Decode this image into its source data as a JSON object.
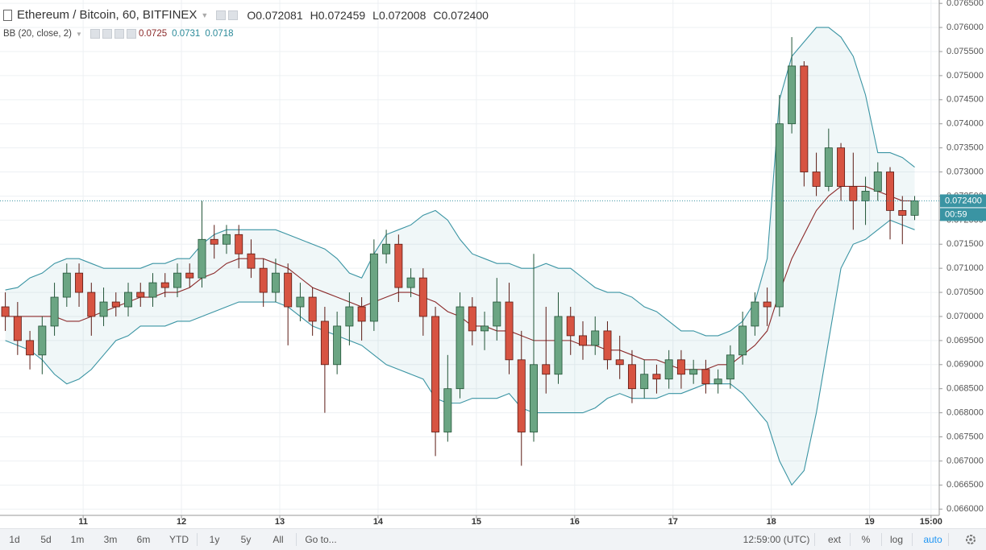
{
  "ui": {
    "symbol": "Ethereum / Bitcoin, 60, BITFINEX",
    "ohlc": [
      {
        "key": "O",
        "value": "0.072081"
      },
      {
        "key": "H",
        "value": "0.072459"
      },
      {
        "key": "L",
        "value": "0.072008"
      },
      {
        "key": "C",
        "value": "0.072400"
      }
    ],
    "indicator": "BB (20, close, 2)",
    "indicator_values": [
      {
        "value": "0.0725",
        "color": "#8b2a2a"
      },
      {
        "value": "0.0731",
        "color": "#2b8a99"
      },
      {
        "value": "0.0718",
        "color": "#2b8a99"
      }
    ],
    "toolbar_left": [
      "1d",
      "5d",
      "1m",
      "3m",
      "6m",
      "YTD",
      "1y",
      "5y",
      "All",
      "Go to..."
    ],
    "clock": "12:59:00 (UTC)",
    "toolbar_right": [
      "ext",
      "%",
      "log",
      "auto"
    ]
  },
  "chart_data": {
    "type": "candlestick",
    "x": [
      5,
      8,
      11,
      14,
      17,
      20,
      23,
      26,
      29,
      32,
      35,
      38,
      41,
      44,
      47,
      50,
      53,
      56,
      59,
      62,
      65,
      68,
      71,
      74,
      77,
      80,
      83,
      86,
      89,
      92,
      95,
      98,
      101,
      104,
      107,
      110,
      113,
      116,
      119,
      122,
      125,
      128,
      131,
      134,
      137,
      140,
      143,
      146,
      149,
      152,
      155,
      158,
      161,
      164,
      167,
      170,
      173,
      176,
      179,
      182,
      185,
      188,
      191,
      194,
      197,
      200,
      203,
      206,
      209,
      212,
      215,
      218,
      221,
      224,
      227
    ],
    "open": [
      0.0702,
      0.07,
      0.0695,
      0.0692,
      0.0698,
      0.0704,
      0.0709,
      0.0705,
      0.07,
      0.0703,
      0.0702,
      0.0705,
      0.0704,
      0.0707,
      0.0706,
      0.0709,
      0.0708,
      0.0716,
      0.0715,
      0.0717,
      0.0713,
      0.071,
      0.0705,
      0.0709,
      0.0702,
      0.0704,
      0.0699,
      0.069,
      0.0698,
      0.0702,
      0.0699,
      0.0713,
      0.0715,
      0.0706,
      0.0708,
      0.07,
      0.0676,
      0.0685,
      0.0702,
      0.0697,
      0.0698,
      0.0703,
      0.0691,
      0.0676,
      0.069,
      0.0688,
      0.07,
      0.0696,
      0.0694,
      0.0697,
      0.0691,
      0.069,
      0.0685,
      0.0688,
      0.0687,
      0.0691,
      0.0688,
      0.0689,
      0.0686,
      0.0687,
      0.0692,
      0.0698,
      0.0703,
      0.0702,
      0.074,
      0.0752,
      0.073,
      0.0727,
      0.0735,
      0.0727,
      0.0724,
      0.0726,
      0.073,
      0.0722,
      0.0721
    ],
    "high": [
      0.0705,
      0.0703,
      0.0697,
      0.07,
      0.0707,
      0.0711,
      0.0711,
      0.0707,
      0.0706,
      0.0705,
      0.0707,
      0.0707,
      0.0709,
      0.0709,
      0.0711,
      0.0711,
      0.0724,
      0.0719,
      0.0719,
      0.0719,
      0.0716,
      0.0712,
      0.0712,
      0.0711,
      0.0707,
      0.0706,
      0.0702,
      0.0701,
      0.0705,
      0.0704,
      0.0716,
      0.0718,
      0.0717,
      0.071,
      0.071,
      0.0702,
      0.0692,
      0.0705,
      0.0704,
      0.0701,
      0.0708,
      0.0707,
      0.0697,
      0.0713,
      0.0702,
      0.0705,
      0.0702,
      0.0699,
      0.07,
      0.0699,
      0.0696,
      0.0693,
      0.0691,
      0.069,
      0.0693,
      0.0693,
      0.0691,
      0.0691,
      0.0689,
      0.0694,
      0.0701,
      0.0705,
      0.0706,
      0.0746,
      0.0758,
      0.0753,
      0.0734,
      0.0739,
      0.0736,
      0.0734,
      0.0729,
      0.0732,
      0.0731,
      0.0725,
      0.0725
    ],
    "low": [
      0.0697,
      0.0692,
      0.0689,
      0.0688,
      0.0696,
      0.0702,
      0.0702,
      0.0696,
      0.0698,
      0.07,
      0.07,
      0.0702,
      0.0702,
      0.0704,
      0.0704,
      0.0706,
      0.0706,
      0.0712,
      0.0713,
      0.071,
      0.0708,
      0.0702,
      0.0703,
      0.0694,
      0.0699,
      0.0696,
      0.068,
      0.0688,
      0.0694,
      0.0695,
      0.0697,
      0.0711,
      0.0703,
      0.0704,
      0.0696,
      0.0671,
      0.0674,
      0.0683,
      0.0694,
      0.0693,
      0.0695,
      0.0688,
      0.0669,
      0.0674,
      0.0684,
      0.0686,
      0.0692,
      0.0691,
      0.0692,
      0.0689,
      0.0687,
      0.0682,
      0.0683,
      0.0684,
      0.0685,
      0.0685,
      0.0686,
      0.0684,
      0.0684,
      0.0685,
      0.069,
      0.0696,
      0.0698,
      0.07,
      0.0738,
      0.0727,
      0.0725,
      0.0726,
      0.0724,
      0.0718,
      0.0719,
      0.0724,
      0.0716,
      0.0715,
      0.072
    ],
    "close": [
      0.07,
      0.0695,
      0.0692,
      0.0698,
      0.0704,
      0.0709,
      0.0705,
      0.07,
      0.0703,
      0.0702,
      0.0705,
      0.0704,
      0.0707,
      0.0706,
      0.0709,
      0.0708,
      0.0716,
      0.0715,
      0.0717,
      0.0713,
      0.071,
      0.0705,
      0.0709,
      0.0702,
      0.0704,
      0.0699,
      0.069,
      0.0698,
      0.0702,
      0.0699,
      0.0713,
      0.0715,
      0.0706,
      0.0708,
      0.07,
      0.0676,
      0.0685,
      0.0702,
      0.0697,
      0.0698,
      0.0703,
      0.0691,
      0.0676,
      0.069,
      0.0688,
      0.07,
      0.0696,
      0.0694,
      0.0697,
      0.0691,
      0.069,
      0.0685,
      0.0688,
      0.0687,
      0.0691,
      0.0688,
      0.0689,
      0.0686,
      0.0687,
      0.0692,
      0.0698,
      0.0703,
      0.0702,
      0.074,
      0.0752,
      0.073,
      0.0727,
      0.0735,
      0.0727,
      0.0724,
      0.0726,
      0.073,
      0.0722,
      0.0721,
      0.0724
    ],
    "up_color": "#6ba583",
    "up_border": "#225437",
    "down_color": "#d75442",
    "down_border": "#5b1a13",
    "bands": {
      "fill": "#2b8a99",
      "series": [
        {
          "color": "#3a94a3",
          "values": [
            0.07055,
            0.0706,
            0.0708,
            0.0709,
            0.0711,
            0.0712,
            0.0712,
            0.0711,
            0.071,
            0.071,
            0.071,
            0.071,
            0.0711,
            0.0711,
            0.0712,
            0.0712,
            0.0715,
            0.0717,
            0.0718,
            0.0718,
            0.0718,
            0.0718,
            0.0718,
            0.0717,
            0.0716,
            0.0715,
            0.0714,
            0.0712,
            0.0709,
            0.0708,
            0.0713,
            0.0717,
            0.0718,
            0.0719,
            0.0721,
            0.0722,
            0.072,
            0.0716,
            0.0713,
            0.0712,
            0.0711,
            0.0711,
            0.071,
            0.071,
            0.0711,
            0.071,
            0.071,
            0.0708,
            0.0706,
            0.0705,
            0.0705,
            0.0704,
            0.0702,
            0.0701,
            0.0699,
            0.0697,
            0.0697,
            0.0696,
            0.0696,
            0.0697,
            0.0699,
            0.0703,
            0.0712,
            0.0745,
            0.0754,
            0.0757,
            0.076,
            0.076,
            0.0758,
            0.0754,
            0.0746,
            0.0734,
            0.0734,
            0.0733,
            0.0731
          ]
        },
        {
          "color": "#8b2a2a",
          "values": [
            0.07,
            0.07,
            0.07,
            0.07,
            0.07,
            0.0699,
            0.0699,
            0.07,
            0.0701,
            0.0702,
            0.0703,
            0.0704,
            0.0704,
            0.0705,
            0.0705,
            0.0706,
            0.0708,
            0.0709,
            0.0711,
            0.0712,
            0.0712,
            0.0712,
            0.0711,
            0.071,
            0.0708,
            0.0706,
            0.0705,
            0.0704,
            0.0703,
            0.0702,
            0.0703,
            0.0704,
            0.0705,
            0.0705,
            0.0704,
            0.0703,
            0.0701,
            0.07,
            0.0698,
            0.0698,
            0.0697,
            0.0697,
            0.0696,
            0.0695,
            0.0695,
            0.0695,
            0.0695,
            0.0694,
            0.0694,
            0.0693,
            0.0693,
            0.0692,
            0.0691,
            0.0691,
            0.069,
            0.0689,
            0.0689,
            0.0689,
            0.069,
            0.069,
            0.0692,
            0.0694,
            0.0697,
            0.0705,
            0.0712,
            0.0717,
            0.0722,
            0.0725,
            0.0727,
            0.0727,
            0.0727,
            0.0726,
            0.0725,
            0.0724,
            0.0724
          ]
        },
        {
          "color": "#3a94a3",
          "values": [
            0.0695,
            0.0694,
            0.0693,
            0.0691,
            0.0688,
            0.0686,
            0.0687,
            0.0689,
            0.0692,
            0.0695,
            0.0696,
            0.0698,
            0.0698,
            0.0698,
            0.0699,
            0.0699,
            0.07,
            0.0701,
            0.0702,
            0.0703,
            0.0703,
            0.0703,
            0.0703,
            0.0702,
            0.07,
            0.0698,
            0.0697,
            0.0696,
            0.0695,
            0.0694,
            0.0692,
            0.069,
            0.0689,
            0.0688,
            0.0687,
            0.0683,
            0.0682,
            0.0682,
            0.0683,
            0.0683,
            0.0683,
            0.0684,
            0.0681,
            0.068,
            0.068,
            0.068,
            0.068,
            0.068,
            0.0681,
            0.0683,
            0.0684,
            0.0683,
            0.0683,
            0.0683,
            0.0684,
            0.0684,
            0.0685,
            0.0686,
            0.0686,
            0.0686,
            0.0684,
            0.0681,
            0.0678,
            0.067,
            0.0665,
            0.0668,
            0.068,
            0.0695,
            0.071,
            0.0715,
            0.0716,
            0.0718,
            0.072,
            0.0719,
            0.0718
          ]
        }
      ]
    },
    "last_price": {
      "value": 0.0724,
      "label": "0.072400",
      "color": "#3a94a3"
    },
    "countdown": "00:59",
    "xlim": [
      3.7,
      233
    ],
    "xticks": [
      {
        "value": 24,
        "label": "11"
      },
      {
        "value": 48,
        "label": "12"
      },
      {
        "value": 72,
        "label": "13"
      },
      {
        "value": 96,
        "label": "14"
      },
      {
        "value": 120,
        "label": "15"
      },
      {
        "value": 144,
        "label": "16"
      },
      {
        "value": 168,
        "label": "17"
      },
      {
        "value": 192,
        "label": "18"
      },
      {
        "value": 216,
        "label": "19"
      },
      {
        "value": 231,
        "label": "15:00"
      }
    ],
    "ylim": [
      0.06587,
      0.07657
    ],
    "yticks": [
      {
        "value": 0.066,
        "label": "0.066000"
      },
      {
        "value": 0.0665,
        "label": "0.066500"
      },
      {
        "value": 0.067,
        "label": "0.067000"
      },
      {
        "value": 0.0675,
        "label": "0.067500"
      },
      {
        "value": 0.068,
        "label": "0.068000"
      },
      {
        "value": 0.0685,
        "label": "0.068500"
      },
      {
        "value": 0.069,
        "label": "0.069000"
      },
      {
        "value": 0.0695,
        "label": "0.069500"
      },
      {
        "value": 0.07,
        "label": "0.070000"
      },
      {
        "value": 0.0705,
        "label": "0.070500"
      },
      {
        "value": 0.071,
        "label": "0.071000"
      },
      {
        "value": 0.0715,
        "label": "0.071500"
      },
      {
        "value": 0.072,
        "label": "0.072000"
      },
      {
        "value": 0.0725,
        "label": "0.072500"
      },
      {
        "value": 0.073,
        "label": "0.073000"
      },
      {
        "value": 0.0735,
        "label": "0.073500"
      },
      {
        "value": 0.074,
        "label": "0.074000"
      },
      {
        "value": 0.0745,
        "label": "0.074500"
      },
      {
        "value": 0.075,
        "label": "0.075000"
      },
      {
        "value": 0.0755,
        "label": "0.075500"
      },
      {
        "value": 0.076,
        "label": "0.076000"
      },
      {
        "value": 0.0765,
        "label": "0.076500"
      }
    ],
    "grid": true
  }
}
